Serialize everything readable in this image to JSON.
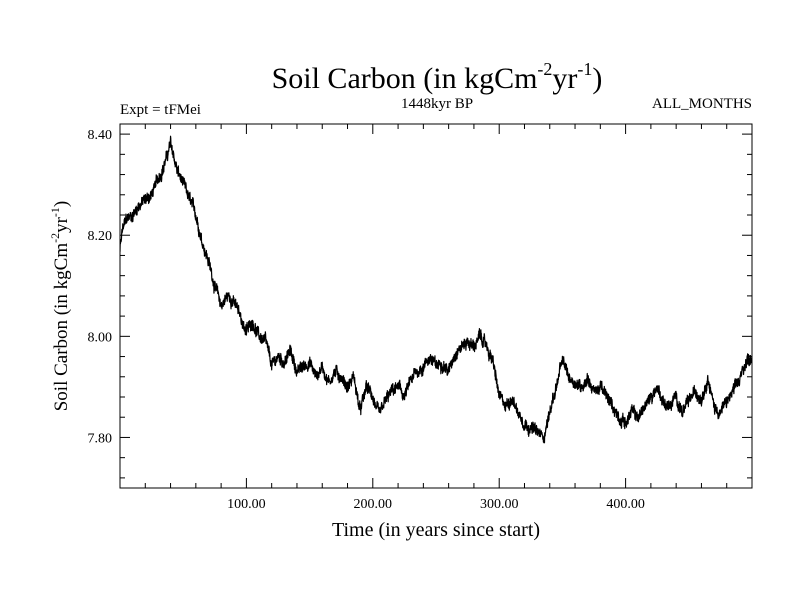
{
  "chart_data": {
    "type": "line",
    "title": "Soil Carbon (in kgCm",
    "title_sup1": "-2",
    "title_mid": "yr",
    "title_sup2": "-1",
    "title_end": ")",
    "expt_label": "Expt = tFMei",
    "period_label": "1448kyr BP",
    "months_label": "ALL_MONTHS",
    "xlabel": "Time (in years since start)",
    "ylabel": "Soil Carbon (in kgCm",
    "ylabel_sup1": "-2",
    "ylabel_mid": "yr",
    "ylabel_sup2": "-1",
    "ylabel_end": ")",
    "xlim": [
      0,
      500
    ],
    "ylim": [
      7.7,
      8.42
    ],
    "x_ticks": [
      {
        "value": 100,
        "label": "100.00"
      },
      {
        "value": 200,
        "label": "200.00"
      },
      {
        "value": 300,
        "label": "300.00"
      },
      {
        "value": 400,
        "label": "400.00"
      }
    ],
    "y_ticks": [
      {
        "value": 7.8,
        "label": "7.80"
      },
      {
        "value": 8.0,
        "label": "8.00"
      },
      {
        "value": 8.2,
        "label": "8.20"
      },
      {
        "value": 8.4,
        "label": "8.40"
      }
    ],
    "series": [
      {
        "line_color": "#000000",
        "noise_amplitude": 0.012,
        "x": [
          0,
          2,
          5,
          10,
          15,
          20,
          25,
          30,
          35,
          40,
          45,
          50,
          55,
          60,
          65,
          70,
          75,
          80,
          85,
          90,
          95,
          100,
          105,
          110,
          115,
          120,
          125,
          130,
          135,
          140,
          145,
          150,
          155,
          160,
          165,
          170,
          175,
          180,
          185,
          190,
          195,
          200,
          205,
          210,
          215,
          220,
          225,
          230,
          235,
          240,
          245,
          250,
          255,
          260,
          265,
          270,
          275,
          280,
          285,
          290,
          295,
          300,
          305,
          310,
          315,
          320,
          325,
          330,
          335,
          340,
          345,
          350,
          355,
          360,
          365,
          370,
          375,
          380,
          385,
          390,
          395,
          400,
          405,
          410,
          415,
          420,
          425,
          430,
          435,
          440,
          445,
          450,
          455,
          460,
          465,
          470,
          475,
          480,
          485,
          490,
          495,
          500
        ],
        "y": [
          8.17,
          8.21,
          8.23,
          8.24,
          8.26,
          8.27,
          8.28,
          8.31,
          8.34,
          8.38,
          8.33,
          8.3,
          8.27,
          8.24,
          8.19,
          8.15,
          8.1,
          8.06,
          8.08,
          8.07,
          8.04,
          8.01,
          8.03,
          8.0,
          7.99,
          7.94,
          7.96,
          7.95,
          7.97,
          7.93,
          7.94,
          7.95,
          7.92,
          7.94,
          7.91,
          7.93,
          7.92,
          7.9,
          7.92,
          7.85,
          7.9,
          7.88,
          7.84,
          7.87,
          7.89,
          7.9,
          7.88,
          7.91,
          7.93,
          7.94,
          7.96,
          7.94,
          7.95,
          7.93,
          7.97,
          7.98,
          7.99,
          7.98,
          8.0,
          7.98,
          7.95,
          7.88,
          7.86,
          7.88,
          7.85,
          7.83,
          7.82,
          7.81,
          7.8,
          7.85,
          7.9,
          7.95,
          7.92,
          7.91,
          7.9,
          7.92,
          7.89,
          7.9,
          7.88,
          7.86,
          7.84,
          7.83,
          7.85,
          7.84,
          7.86,
          7.88,
          7.9,
          7.87,
          7.86,
          7.88,
          7.85,
          7.87,
          7.89,
          7.88,
          7.92,
          7.86,
          7.85,
          7.87,
          7.89,
          7.91,
          7.95,
          7.96
        ]
      }
    ]
  }
}
